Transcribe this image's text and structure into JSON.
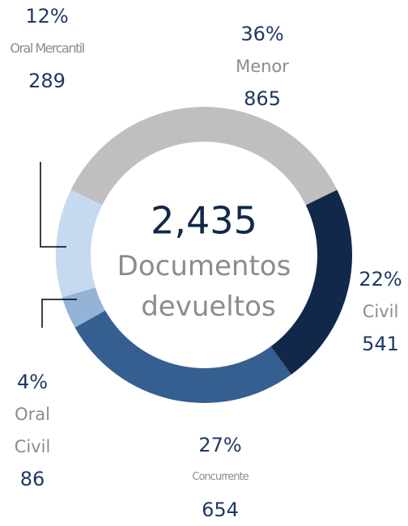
{
  "chart_data": {
    "type": "donut",
    "center_value": "2,435",
    "center_text": "Documentos devueltos",
    "categories": [
      "Menor",
      "Civil",
      "Concurrente",
      "Oral Civil",
      "Oral Mercantil"
    ],
    "values": [
      865,
      541,
      654,
      86,
      289
    ],
    "percent_labels": [
      "36%",
      "22%",
      "27%",
      "4%",
      "12%"
    ],
    "colors": [
      "#bfbfbf",
      "#12284a",
      "#355f91",
      "#95b3d7",
      "#c6d9f1"
    ]
  }
}
